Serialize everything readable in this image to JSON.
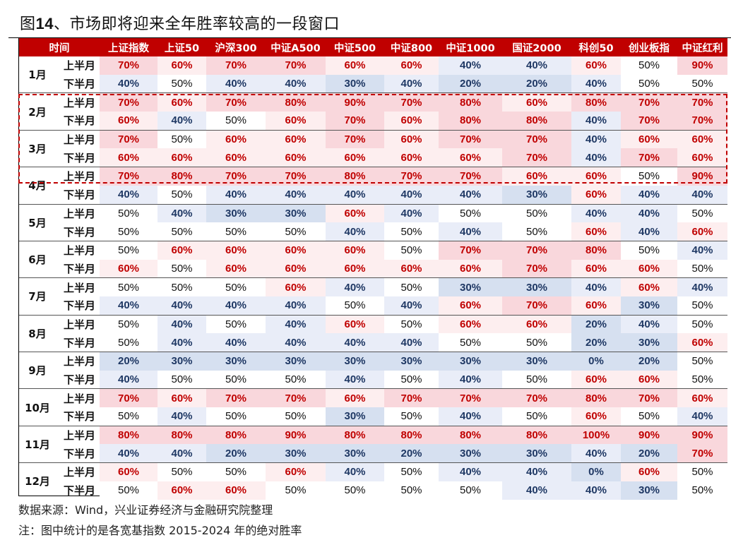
{
  "title": {
    "prefix": "图",
    "number": "14",
    "text": "、市场即将迎来全年胜率较高的一段窗口"
  },
  "table": {
    "header": [
      "时间",
      "上证指数",
      "上证50",
      "沪深300",
      "中证A500",
      "中证500",
      "中证800",
      "中证1000",
      "国证2000",
      "科创50",
      "创业板指",
      "中证红利"
    ],
    "half_labels": [
      "上半月",
      "下半月"
    ],
    "months": [
      {
        "month": "1月",
        "rows": [
          [
            "70%",
            "60%",
            "70%",
            "70%",
            "60%",
            "60%",
            "40%",
            "40%",
            "60%",
            "50%",
            "90%"
          ],
          [
            "40%",
            "50%",
            "40%",
            "40%",
            "30%",
            "40%",
            "20%",
            "20%",
            "40%",
            "50%",
            "50%"
          ]
        ]
      },
      {
        "month": "2月",
        "rows": [
          [
            "70%",
            "60%",
            "70%",
            "80%",
            "90%",
            "70%",
            "80%",
            "60%",
            "80%",
            "70%",
            "70%"
          ],
          [
            "60%",
            "40%",
            "50%",
            "60%",
            "70%",
            "60%",
            "80%",
            "80%",
            "40%",
            "70%",
            "70%"
          ]
        ]
      },
      {
        "month": "3月",
        "rows": [
          [
            "70%",
            "50%",
            "60%",
            "60%",
            "70%",
            "60%",
            "70%",
            "70%",
            "40%",
            "60%",
            "60%"
          ],
          [
            "60%",
            "60%",
            "60%",
            "60%",
            "60%",
            "60%",
            "60%",
            "70%",
            "40%",
            "70%",
            "60%"
          ]
        ]
      },
      {
        "month": "4月",
        "rows": [
          [
            "70%",
            "80%",
            "70%",
            "70%",
            "80%",
            "70%",
            "70%",
            "60%",
            "60%",
            "50%",
            "90%"
          ],
          [
            "40%",
            "50%",
            "40%",
            "40%",
            "40%",
            "40%",
            "40%",
            "30%",
            "60%",
            "40%",
            "40%"
          ]
        ]
      },
      {
        "month": "5月",
        "rows": [
          [
            "50%",
            "40%",
            "30%",
            "30%",
            "60%",
            "40%",
            "50%",
            "50%",
            "40%",
            "40%",
            "50%"
          ],
          [
            "50%",
            "50%",
            "50%",
            "50%",
            "40%",
            "50%",
            "40%",
            "50%",
            "60%",
            "40%",
            "60%"
          ]
        ]
      },
      {
        "month": "6月",
        "rows": [
          [
            "50%",
            "60%",
            "60%",
            "60%",
            "60%",
            "50%",
            "70%",
            "70%",
            "80%",
            "50%",
            "40%"
          ],
          [
            "60%",
            "50%",
            "60%",
            "60%",
            "60%",
            "60%",
            "60%",
            "70%",
            "60%",
            "60%",
            "50%"
          ]
        ]
      },
      {
        "month": "7月",
        "rows": [
          [
            "50%",
            "50%",
            "50%",
            "60%",
            "40%",
            "50%",
            "30%",
            "30%",
            "40%",
            "60%",
            "40%"
          ],
          [
            "40%",
            "40%",
            "40%",
            "40%",
            "50%",
            "40%",
            "60%",
            "70%",
            "60%",
            "30%",
            "50%"
          ]
        ]
      },
      {
        "month": "8月",
        "rows": [
          [
            "50%",
            "40%",
            "50%",
            "40%",
            "60%",
            "50%",
            "60%",
            "60%",
            "20%",
            "40%",
            "50%"
          ],
          [
            "50%",
            "40%",
            "40%",
            "40%",
            "40%",
            "40%",
            "50%",
            "50%",
            "20%",
            "30%",
            "60%"
          ]
        ]
      },
      {
        "month": "9月",
        "rows": [
          [
            "20%",
            "30%",
            "30%",
            "30%",
            "30%",
            "30%",
            "30%",
            "30%",
            "0%",
            "20%",
            "50%"
          ],
          [
            "40%",
            "50%",
            "50%",
            "50%",
            "40%",
            "50%",
            "40%",
            "50%",
            "60%",
            "60%",
            "50%"
          ]
        ]
      },
      {
        "month": "10月",
        "rows": [
          [
            "70%",
            "60%",
            "70%",
            "70%",
            "60%",
            "70%",
            "70%",
            "70%",
            "80%",
            "70%",
            "60%"
          ],
          [
            "50%",
            "40%",
            "50%",
            "50%",
            "30%",
            "50%",
            "40%",
            "50%",
            "60%",
            "50%",
            "40%"
          ]
        ]
      },
      {
        "month": "11月",
        "rows": [
          [
            "80%",
            "80%",
            "80%",
            "90%",
            "80%",
            "80%",
            "80%",
            "80%",
            "100%",
            "90%",
            "90%"
          ],
          [
            "40%",
            "40%",
            "20%",
            "30%",
            "30%",
            "20%",
            "30%",
            "30%",
            "40%",
            "20%",
            "70%"
          ]
        ]
      },
      {
        "month": "12月",
        "rows": [
          [
            "60%",
            "50%",
            "50%",
            "60%",
            "40%",
            "50%",
            "40%",
            "40%",
            "0%",
            "60%",
            "50%"
          ],
          [
            "50%",
            "60%",
            "60%",
            "50%",
            "50%",
            "50%",
            "50%",
            "40%",
            "40%",
            "30%",
            "50%"
          ]
        ]
      }
    ],
    "highlight_note": "Dashed red box highlights 2月 through 4月上半月"
  },
  "colors": {
    "header_bg": "#c00000",
    "high_text": "#c00000",
    "low_text": "#1f3864",
    "bg_60": "#fdeeef",
    "bg_70plus": "#f9d7dc",
    "bg_40": "#e9edf8",
    "bg_30minus": "#d6e0f0"
  },
  "footer": {
    "source": "数据来源：Wind，兴业证券经济与金融研究院整理",
    "note": "注：图中统计的是各宽基指数 2015-2024 年的绝对胜率"
  }
}
